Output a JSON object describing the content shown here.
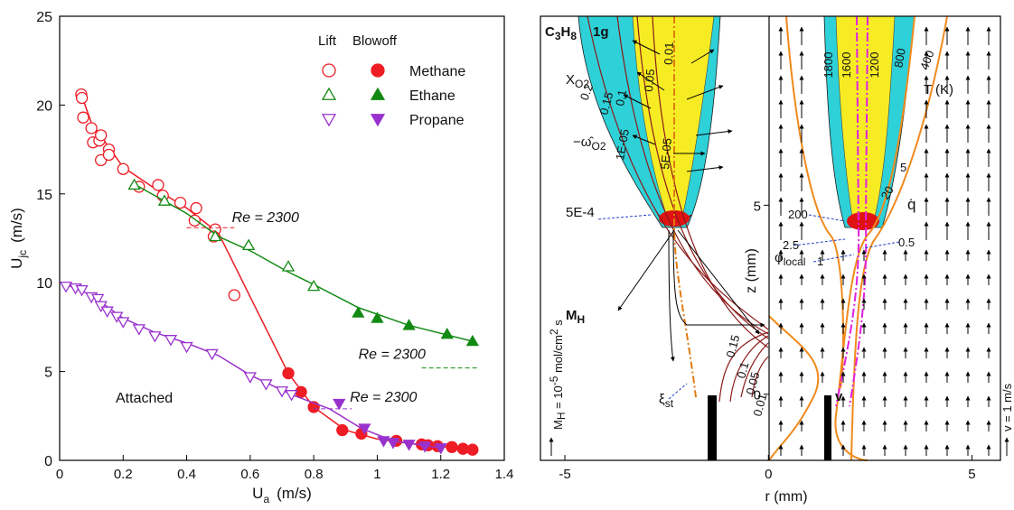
{
  "chart_data": [
    {
      "type": "scatter",
      "xlabel": {
        "text": "U",
        "sub": "a",
        "unit": "(m/s)"
      },
      "ylabel": {
        "text": "U",
        "sub": "jc",
        "unit": "(m/s)"
      },
      "xlim": [
        0,
        1.4
      ],
      "xticks": [
        0,
        0.2,
        0.4,
        0.6,
        0.8,
        1,
        1.2,
        1.4
      ],
      "ylim": [
        0,
        25
      ],
      "yticks": [
        0,
        5,
        10,
        15,
        20,
        25
      ],
      "legend_headers": [
        "Lift",
        "Blowoff"
      ],
      "series": [
        {
          "name": "Methane",
          "color": "#ee1c25",
          "marker": "circle",
          "lift": {
            "x": [
              0.068,
              0.07,
              0.074,
              0.1,
              0.105,
              0.125,
              0.13,
              0.13,
              0.155,
              0.155,
              0.2,
              0.25,
              0.31,
              0.325,
              0.38,
              0.43,
              0.425,
              0.49,
              0.485,
              0.55
            ],
            "values": [
              20.6,
              20.4,
              19.3,
              18.7,
              17.9,
              18.0,
              18.3,
              16.9,
              17.5,
              17.2,
              16.4,
              15.4,
              15.5,
              14.9,
              14.5,
              14.2,
              13.5,
              13.0,
              12.6,
              9.3
            ]
          },
          "blowoff": {
            "x": [
              0.72,
              0.76,
              0.8,
              0.89,
              0.95,
              1.06,
              1.14,
              1.16,
              1.19,
              1.235,
              1.27,
              1.3
            ],
            "values": [
              4.9,
              3.85,
              3.0,
              1.7,
              1.5,
              1.1,
              0.9,
              0.85,
              0.8,
              0.75,
              0.65,
              0.6
            ]
          },
          "fit": {
            "x": [
              0.07,
              0.1,
              0.2,
              0.3,
              0.4,
              0.5,
              0.6,
              0.72,
              0.8,
              0.9,
              1.0,
              1.1,
              1.3
            ],
            "values": [
              20.5,
              19.0,
              16.5,
              15.3,
              14.2,
              12.8,
              9.2,
              4.9,
              3.0,
              1.7,
              1.2,
              0.95,
              0.6
            ]
          }
        },
        {
          "name": "Ethane",
          "color": "#138a13",
          "marker": "triangle-up",
          "lift": {
            "x": [
              0.235,
              0.33,
              0.49,
              0.595,
              0.72,
              0.8
            ],
            "values": [
              15.5,
              14.6,
              12.6,
              12.1,
              10.9,
              9.8
            ]
          },
          "blowoff": {
            "x": [
              0.94,
              1.0,
              1.1,
              1.22,
              1.3
            ],
            "values": [
              8.3,
              8.0,
              7.6,
              7.1,
              6.7
            ]
          },
          "fit": {
            "x": [
              0.23,
              0.4,
              0.5,
              0.6,
              0.72,
              0.8,
              0.94,
              1.1,
              1.3
            ],
            "values": [
              15.6,
              13.9,
              12.6,
              11.8,
              10.6,
              9.9,
              8.6,
              7.6,
              6.7
            ]
          }
        },
        {
          "name": "Propane",
          "color": "#9932cc",
          "marker": "triangle-down",
          "lift": {
            "x": [
              0.02,
              0.05,
              0.07,
              0.1,
              0.12,
              0.13,
              0.15,
              0.18,
              0.2,
              0.25,
              0.3,
              0.35,
              0.4,
              0.48,
              0.6,
              0.65,
              0.7,
              0.73
            ],
            "values": [
              9.8,
              9.7,
              9.6,
              9.2,
              9.1,
              8.7,
              8.4,
              8.1,
              7.8,
              7.4,
              7.0,
              6.8,
              6.4,
              6.0,
              4.7,
              4.3,
              3.9,
              3.7
            ]
          },
          "blowoff": {
            "x": [
              0.88,
              0.96,
              1.02,
              1.05,
              1.1,
              1.15,
              1.2
            ],
            "values": [
              3.2,
              1.8,
              1.1,
              1.0,
              0.9,
              0.8,
              0.7
            ]
          },
          "fit": {
            "x": [
              0.02,
              0.1,
              0.2,
              0.3,
              0.4,
              0.5,
              0.6,
              0.73,
              0.85,
              0.95,
              1.05,
              1.2
            ],
            "values": [
              9.9,
              9.3,
              8.0,
              7.2,
              6.6,
              5.9,
              4.8,
              3.7,
              2.9,
              1.8,
              1.1,
              0.7
            ]
          }
        }
      ],
      "annotations": [
        {
          "text": "Re = 2300",
          "color": "#ee1c25",
          "y": 13.1,
          "x": [
            0.4,
            0.55
          ]
        },
        {
          "text": "Re = 2300",
          "color": "#138a13",
          "y": 5.2,
          "x": [
            1.14,
            1.32
          ]
        },
        {
          "text": "Re = 2300",
          "color": "#9932cc",
          "y": 2.9,
          "x": [
            0.8,
            0.92
          ]
        }
      ],
      "region_label": "Attached"
    },
    {
      "type": "contour",
      "xlabel": "r  (mm)",
      "ylabel": "z  (mm)",
      "xlim": [
        -5.6,
        5.7
      ],
      "xticks": [
        -5,
        0,
        5
      ],
      "ylim": [
        -1.75,
        10
      ],
      "yticks": [
        0,
        5
      ],
      "labels": {
        "fuel": {
          "text": "C",
          "sub": "3",
          "text2": "H",
          "sub2": "8"
        },
        "gravity": "1g",
        "xo2": {
          "text": "X",
          "sub": "O2"
        },
        "xo2_levels": [
          "0.2",
          "0.15",
          "0.1",
          "0.05",
          "0.01",
          "1E-05",
          "5E-05"
        ],
        "omega": {
          "text": "−ω̂",
          "sub": "O2"
        },
        "omega_level": "5E-4",
        "mh": {
          "text": "M",
          "sub": "H"
        },
        "xi_levels": [
          "0.15",
          "0.1",
          "0.05",
          "0.01"
        ],
        "xi": {
          "text": "ξ",
          "sub": "st"
        },
        "mh_scale": {
          "text": "M",
          "sub": "H",
          "text2": " = 10",
          "sup": "-5",
          "text3": "  mol/cm",
          "sup2": "2",
          "text4": " s"
        },
        "t_levels": [
          "1800",
          "1600",
          "1200",
          "800",
          "400"
        ],
        "t_unit": "T (K)",
        "q_levels": [
          "5",
          "20",
          "200"
        ],
        "q": "q̇",
        "phi_levels": [
          "2.5",
          "0.5",
          "1"
        ],
        "phi": {
          "text": "φ",
          "sub": "local"
        },
        "v": "v",
        "v_scale": "v = 1 m/s"
      }
    }
  ]
}
